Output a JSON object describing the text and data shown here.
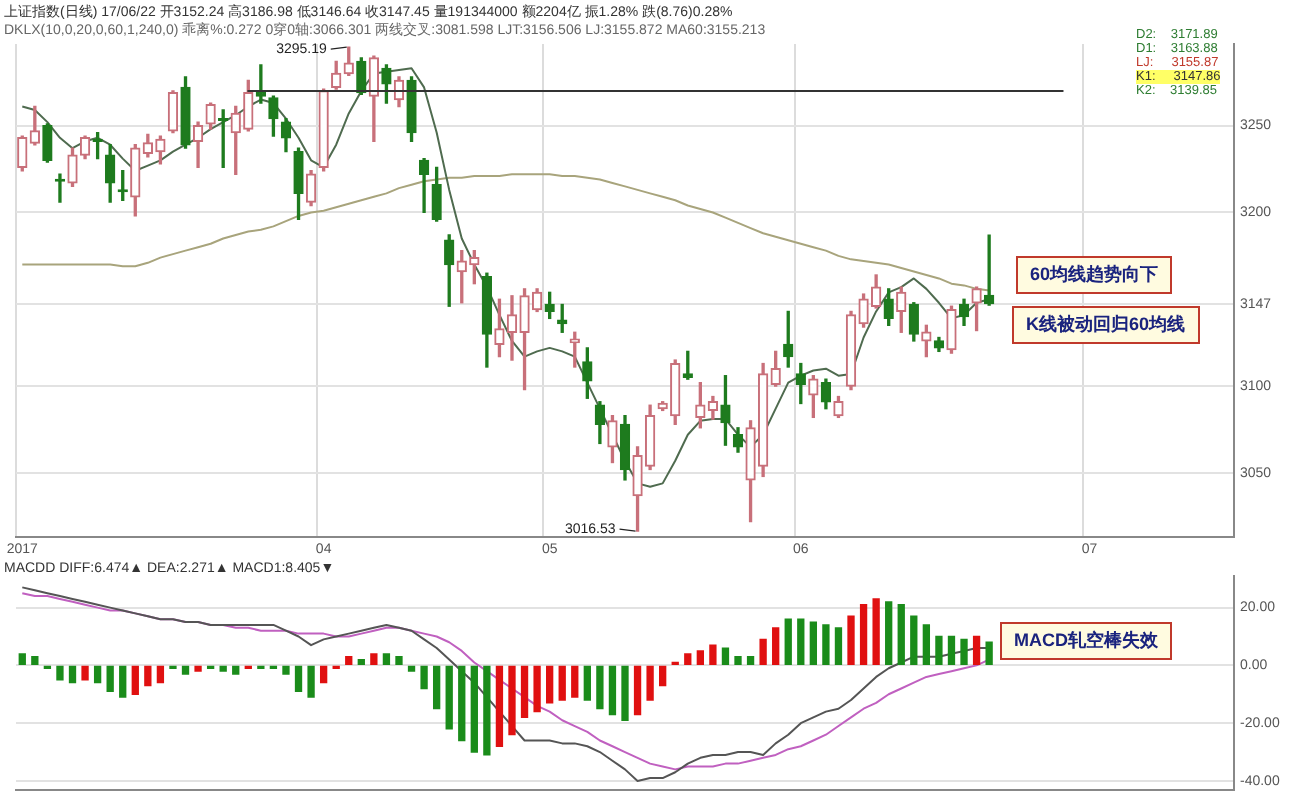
{
  "chart_data": [
    {
      "type": "candlestick",
      "title": "上证指数(日线) 17/06/22 开3152.24 高3186.98 低3146.64 收3147.45 量191344000 额2204亿 振1.28% 跌(8.76)0.28%",
      "subtitle": "DKLX(10,0,20,0,60,1,240,0) 乖离%:0.272 0穿0轴:3066.301 两线交叉:3081.598 LJT:3156.506 LJ:3155.872 MA60:3155.213",
      "categories": [
        "2017",
        null,
        null,
        null,
        null,
        null,
        null,
        null,
        null,
        null,
        null,
        null,
        null,
        null,
        null,
        null,
        null,
        null,
        null,
        null,
        null,
        null,
        null,
        null,
        "04",
        null,
        null,
        null,
        null,
        null,
        null,
        null,
        null,
        null,
        null,
        null,
        null,
        null,
        null,
        null,
        null,
        null,
        "05",
        null,
        null,
        null,
        null,
        null,
        null,
        null,
        null,
        null,
        null,
        null,
        null,
        null,
        null,
        null,
        null,
        null,
        null,
        null,
        "06",
        null,
        null,
        null,
        null,
        null,
        null,
        null,
        null,
        null,
        null,
        null,
        null,
        null,
        null,
        null,
        null,
        null,
        null,
        null,
        null,
        null,
        null,
        "07",
        null,
        null,
        null,
        null,
        null,
        null,
        null,
        null,
        null,
        null,
        null
      ],
      "ohlc": [
        [
          3226,
          3244,
          3224,
          3243
        ],
        [
          3240,
          3261,
          3239,
          3247
        ],
        [
          3250,
          3251,
          3229,
          3230
        ],
        [
          3219,
          3222,
          3206,
          3218
        ],
        [
          3217,
          3237,
          3215,
          3233
        ],
        [
          3233,
          3244,
          3231,
          3243
        ],
        [
          3242,
          3246,
          3231,
          3241
        ],
        [
          3233,
          3239,
          3206,
          3217
        ],
        [
          3213,
          3224,
          3207,
          3212
        ],
        [
          3209,
          3239,
          3198,
          3237
        ],
        [
          3234,
          3245,
          3232,
          3240
        ],
        [
          3235,
          3244,
          3228,
          3242
        ],
        [
          3247,
          3270,
          3246,
          3269
        ],
        [
          3272,
          3278,
          3237,
          3239
        ],
        [
          3241,
          3252,
          3226,
          3250
        ],
        [
          3251,
          3263,
          3248,
          3262
        ],
        [
          3254,
          3259,
          3226,
          3253
        ],
        [
          3246,
          3261,
          3222,
          3257
        ],
        [
          3248,
          3276,
          3247,
          3269
        ],
        [
          3269,
          3285,
          3263,
          3267
        ],
        [
          3266,
          3267,
          3244,
          3254
        ],
        [
          3252,
          3254,
          3235,
          3243
        ],
        [
          3235,
          3237,
          3196,
          3211
        ],
        [
          3206,
          3224,
          3204,
          3222
        ],
        [
          3226,
          3271,
          3224,
          3270
        ],
        [
          3272,
          3287,
          3271,
          3280
        ],
        [
          3280,
          3295.19,
          3279,
          3286
        ],
        [
          3287,
          3289,
          3268,
          3269
        ],
        [
          3267,
          3290,
          3241,
          3289
        ],
        [
          3283,
          3285,
          3263,
          3274
        ],
        [
          3265,
          3278,
          3261,
          3276
        ],
        [
          3276,
          3278,
          3241,
          3246
        ],
        [
          3230,
          3231,
          3200,
          3222
        ],
        [
          3216,
          3226,
          3195,
          3196
        ],
        [
          3184,
          3187,
          3146,
          3170
        ],
        [
          3166,
          3178,
          3148,
          3172
        ],
        [
          3170,
          3178,
          3159,
          3174
        ],
        [
          3163,
          3165,
          3111,
          3130
        ],
        [
          3124,
          3150,
          3117,
          3133
        ],
        [
          3131,
          3152,
          3115,
          3141
        ],
        [
          3131,
          3156,
          3098,
          3152
        ],
        [
          3144,
          3156,
          3143,
          3154
        ],
        [
          3147,
          3154,
          3139,
          3143
        ],
        [
          3138,
          3147,
          3131,
          3136
        ],
        [
          3125,
          3131,
          3111,
          3127
        ],
        [
          3114,
          3122,
          3093,
          3103
        ],
        [
          3089,
          3091,
          3067,
          3078
        ],
        [
          3065,
          3083,
          3056,
          3080
        ],
        [
          3078,
          3083,
          3046,
          3052
        ],
        [
          3037,
          3065,
          3016.53,
          3060
        ],
        [
          3054,
          3089,
          3052,
          3083
        ],
        [
          3087,
          3091,
          3086,
          3090
        ],
        [
          3083,
          3115,
          3078,
          3113
        ],
        [
          3107,
          3120,
          3104,
          3105
        ],
        [
          3082,
          3102,
          3076,
          3089
        ],
        [
          3086,
          3094,
          3081,
          3091
        ],
        [
          3089,
          3106,
          3066,
          3079
        ],
        [
          3072,
          3076,
          3062,
          3065
        ],
        [
          3046,
          3080,
          3022,
          3076
        ],
        [
          3054,
          3113,
          3048,
          3107
        ],
        [
          3101,
          3120,
          3100,
          3110
        ],
        [
          3124,
          3143,
          3111,
          3117
        ],
        [
          3107,
          3113,
          3090,
          3101
        ],
        [
          3095,
          3106,
          3082,
          3104
        ],
        [
          3102,
          3104,
          3087,
          3091
        ],
        [
          3083,
          3094,
          3082,
          3091
        ],
        [
          3100,
          3143,
          3098,
          3141
        ],
        [
          3136,
          3153,
          3134,
          3150
        ],
        [
          3146,
          3164,
          3145,
          3157
        ],
        [
          3150,
          3156,
          3135,
          3139
        ],
        [
          3143,
          3157,
          3131,
          3154
        ],
        [
          3147,
          3148,
          3126,
          3130
        ],
        [
          3126,
          3135,
          3117,
          3131
        ],
        [
          3126,
          3128,
          3120,
          3122
        ],
        [
          3121,
          3146,
          3119,
          3144
        ],
        [
          3147,
          3150,
          3135,
          3140
        ],
        [
          3148,
          3157,
          3132,
          3156
        ],
        [
          3152.24,
          3186.98,
          3146.64,
          3147.45
        ],
        null,
        null,
        null,
        null,
        null,
        null,
        null,
        null,
        null,
        null,
        null,
        null,
        null,
        null,
        null,
        null,
        null,
        null,
        null
      ],
      "series": [
        {
          "type": "line",
          "color": "#4f6b4f",
          "values": [
            3261,
            3259,
            3252,
            3243,
            3237,
            3241,
            3243,
            3239,
            3231,
            3224,
            3227,
            3230,
            3235,
            3239,
            3243,
            3248,
            3252,
            3256,
            3261,
            3265,
            3263,
            3254,
            3243,
            3230,
            3226,
            3239,
            3257,
            3270,
            3280,
            3281,
            3282,
            3283,
            3272,
            3246,
            3213,
            3185,
            3170,
            3157,
            3141,
            3126,
            3117,
            3120,
            3122,
            3120,
            3117,
            3102,
            3087,
            3072,
            3057,
            3044,
            3042,
            3044,
            3057,
            3072,
            3080,
            3081,
            3081,
            3072,
            3065,
            3072,
            3087,
            3102,
            3106,
            3109,
            3110,
            3106,
            3107,
            3128,
            3143,
            3154,
            3157,
            3162,
            3156,
            3148,
            3139,
            3141,
            3148,
            3150,
            null,
            null,
            null,
            null,
            null,
            null,
            null,
            null,
            null,
            null,
            null,
            null,
            null,
            null,
            null,
            null,
            null,
            null,
            null
          ]
        },
        {
          "type": "line",
          "color": "#a8a47c",
          "values": [
            3170,
            3170,
            3170,
            3170,
            3170,
            3170,
            3170,
            3170,
            3169,
            3169,
            3171,
            3174,
            3176,
            3178,
            3180,
            3182,
            3185,
            3187,
            3189,
            3190,
            3192,
            3195,
            3198,
            3200,
            3201,
            3203,
            3205,
            3207,
            3209,
            3211,
            3214,
            3216,
            3218,
            3219,
            3220,
            3220,
            3221,
            3221,
            3221,
            3222,
            3222,
            3222,
            3222,
            3221,
            3221,
            3220,
            3219,
            3217,
            3215,
            3213,
            3211,
            3209,
            3207,
            3204,
            3202,
            3200,
            3197,
            3194,
            3191,
            3188,
            3186,
            3184,
            3182,
            3180,
            3178,
            3175,
            3173,
            3172,
            3171,
            3170,
            3168,
            3166,
            3164,
            3162,
            3159,
            3158,
            3156,
            3155,
            null,
            null,
            null,
            null,
            null,
            null,
            null,
            null,
            null,
            null,
            null,
            null,
            null,
            null,
            null,
            null,
            null,
            null,
            null
          ]
        }
      ],
      "ylim": [
        3013,
        3297
      ],
      "yticks": [
        3050,
        3100,
        3147,
        3200,
        3250
      ],
      "grid": true,
      "ref_lines": [
        {
          "axis": "y",
          "value": 3270,
          "color": "#333333"
        }
      ],
      "annotations": [
        "3295.19",
        "3016.53",
        "D2:    3171.89",
        "D1:    3163.88",
        "LJ:     3155.87",
        "K1:     3147.86",
        "K2:    3139.85",
        "60均线趋势向下",
        "K线被动回归60均线"
      ]
    },
    {
      "type": "bar",
      "title": "MACDD DIFF:6.474▲ DEA:2.271▲ MACD1:8.405▼",
      "categories": [
        null,
        null,
        null,
        null,
        null,
        null,
        null,
        null,
        null,
        null,
        null,
        null,
        null,
        null,
        null,
        null,
        null,
        null,
        null,
        null,
        null,
        null,
        null,
        null,
        null,
        null,
        null,
        null,
        null,
        null,
        null,
        null,
        null,
        null,
        null,
        null,
        null,
        null,
        null,
        null,
        null,
        null,
        null,
        null,
        null,
        null,
        null,
        null,
        null,
        null,
        null,
        null,
        null,
        null,
        null,
        null,
        null,
        null,
        null,
        null,
        null,
        null,
        null,
        null,
        null,
        null,
        null,
        null,
        null,
        null,
        null,
        null,
        null,
        null,
        null,
        null,
        null,
        null,
        null,
        null,
        null,
        null,
        null,
        null,
        null,
        null,
        null,
        null,
        null,
        null,
        null,
        null,
        null,
        null,
        null,
        null,
        null
      ],
      "series": [
        {
          "type": "bar",
          "values": [
            4,
            3,
            -1,
            -5,
            -6,
            -5,
            -6,
            -9,
            -11,
            -10,
            -7,
            -6,
            -1,
            -3,
            -2,
            -1,
            -2,
            -3,
            -1,
            -1,
            -1,
            -3,
            -9,
            -11,
            -6,
            -1,
            3,
            2,
            4,
            4,
            3,
            -2,
            -8,
            -15,
            -22,
            -26,
            -30,
            -31,
            -28,
            -24,
            -18,
            -16,
            -13,
            -12,
            -11,
            -12,
            -15,
            -17,
            -19,
            -17,
            -12,
            -7,
            1,
            4,
            5,
            7,
            6,
            3,
            3,
            9,
            13,
            16,
            16,
            15,
            14,
            13,
            17,
            21,
            23,
            22,
            21,
            17,
            14,
            10,
            10,
            9,
            10,
            8,
            null,
            null,
            null,
            null,
            null,
            null,
            null,
            null,
            null,
            null,
            null,
            null,
            null,
            null,
            null,
            null,
            null,
            null,
            null
          ],
          "colors": [
            "#1a8c1a",
            "#1a8c1a",
            "#1a8c1a",
            "#1a8c1a",
            "#1a8c1a",
            "#e01010",
            "#1a8c1a",
            "#1a8c1a",
            "#1a8c1a",
            "#e01010",
            "#e01010",
            "#e01010",
            "#1a8c1a",
            "#1a8c1a",
            "#e01010",
            "#1a8c1a",
            "#1a8c1a",
            "#1a8c1a",
            "#e01010",
            "#1a8c1a",
            "#1a8c1a",
            "#1a8c1a",
            "#1a8c1a",
            "#1a8c1a",
            "#e01010",
            "#e01010",
            "#e01010",
            "#1a8c1a",
            "#e01010",
            "#1a8c1a",
            "#1a8c1a",
            "#1a8c1a",
            "#1a8c1a",
            "#1a8c1a",
            "#1a8c1a",
            "#1a8c1a",
            "#1a8c1a",
            "#1a8c1a",
            "#e01010",
            "#e01010",
            "#e01010",
            "#e01010",
            "#e01010",
            "#e01010",
            "#e01010",
            "#1a8c1a",
            "#1a8c1a",
            "#1a8c1a",
            "#1a8c1a",
            "#e01010",
            "#e01010",
            "#e01010",
            "#e01010",
            "#e01010",
            "#e01010",
            "#e01010",
            "#1a8c1a",
            "#1a8c1a",
            "#1a8c1a",
            "#e01010",
            "#e01010",
            "#1a8c1a",
            "#1a8c1a",
            "#1a8c1a",
            "#1a8c1a",
            "#1a8c1a",
            "#e01010",
            "#e01010",
            "#e01010",
            "#1a8c1a",
            "#1a8c1a",
            "#1a8c1a",
            "#1a8c1a",
            "#1a8c1a",
            "#1a8c1a",
            "#1a8c1a",
            "#e01010",
            "#1a8c1a",
            null,
            null,
            null,
            null,
            null,
            null,
            null,
            null,
            null,
            null,
            null,
            null,
            null,
            null,
            null,
            null,
            null,
            null,
            null
          ]
        },
        {
          "type": "line",
          "color": "#555555",
          "values": [
            27,
            26,
            25,
            24,
            23,
            22,
            21,
            20,
            19,
            18,
            17,
            16,
            16,
            15,
            15,
            14,
            14,
            14,
            14,
            14,
            14,
            12,
            10,
            7,
            9,
            10,
            11,
            12,
            13,
            14,
            13,
            12,
            9,
            6,
            2,
            -2,
            -6,
            -11,
            -16,
            -21,
            -26,
            -26,
            -26,
            -27,
            -27,
            -28,
            -30,
            -33,
            -36,
            -40,
            -39,
            -39,
            -37,
            -34,
            -32,
            -31,
            -31,
            -30,
            -30,
            -31,
            -27,
            -24,
            -20,
            -18,
            -16,
            -15,
            -12,
            -8,
            -4,
            -1,
            1,
            3,
            3,
            3,
            4,
            5,
            6,
            6,
            null,
            null,
            null,
            null,
            null,
            null,
            null,
            null,
            null,
            null,
            null,
            null,
            null,
            null,
            null,
            null,
            null,
            null,
            null
          ]
        },
        {
          "type": "line",
          "color": "#c060c0",
          "values": [
            25,
            24,
            24,
            23,
            22,
            21,
            20,
            19,
            19,
            18,
            17,
            16,
            16,
            15,
            15,
            14,
            14,
            13,
            13,
            12,
            12,
            12,
            11,
            11,
            11,
            10,
            10,
            11,
            12,
            13,
            13,
            12,
            11,
            10,
            8,
            5,
            1,
            -2,
            -5,
            -8,
            -11,
            -14,
            -16,
            -19,
            -21,
            -23,
            -26,
            -28,
            -30,
            -32,
            -34,
            -35,
            -36,
            -35,
            -35,
            -35,
            -34,
            -34,
            -33,
            -32,
            -31,
            -29,
            -28,
            -26,
            -24,
            -21,
            -18,
            -15,
            -13,
            -10,
            -8,
            -6,
            -4,
            -3,
            -2,
            -1,
            0,
            2,
            null,
            null,
            null,
            null,
            null,
            null,
            null,
            null,
            null,
            null,
            null,
            null,
            null,
            null,
            null,
            null,
            null,
            null,
            null
          ]
        }
      ],
      "ylim": [
        -43,
        30.8
      ],
      "yticks": [
        {
          "value": -40,
          "label": "-40.00"
        },
        {
          "value": -20,
          "label": "-20.00"
        },
        {
          "value": 0,
          "label": "0.00"
        },
        {
          "value": 20,
          "label": "20.00"
        }
      ],
      "grid": "y",
      "tick_labels": "y",
      "annotations": [
        "MACD轧空棒失效"
      ]
    }
  ]
}
